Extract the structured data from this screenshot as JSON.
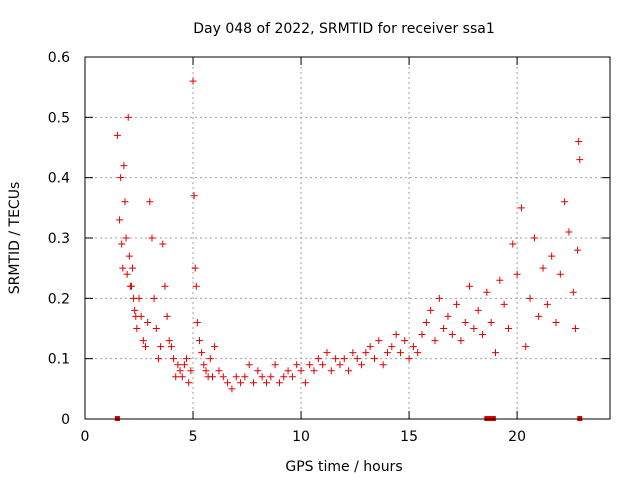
{
  "chart_data": {
    "type": "scatter",
    "title": "Day 048 of 2022, SRMTID for receiver ssa1",
    "xlabel": "GPS time / hours",
    "ylabel": "SRMTID / TECUs",
    "xlim": [
      0,
      24.3
    ],
    "ylim": [
      0,
      0.6
    ],
    "xticks": [
      0,
      5,
      10,
      15,
      20
    ],
    "xtick_labels": [
      "0",
      "5",
      "10",
      "15",
      "20"
    ],
    "yticks": [
      0,
      0.1,
      0.2,
      0.3,
      0.4,
      0.5,
      0.6
    ],
    "ytick_labels": [
      "0",
      "0.1",
      "0.2",
      "0.3",
      "0.4",
      "0.5",
      "0.6"
    ],
    "grid": true,
    "marker": "plus",
    "color": "#e00000",
    "series": [
      {
        "name": "SRMTID",
        "x": [
          1.5,
          1.6,
          1.65,
          1.7,
          1.75,
          1.8,
          1.85,
          1.9,
          1.95,
          2.0,
          2.05,
          2.1,
          2.15,
          2.2,
          2.25,
          2.3,
          2.35,
          2.4,
          2.5,
          2.6,
          2.7,
          2.8,
          2.9,
          3.0,
          3.1,
          3.2,
          3.3,
          3.4,
          3.5,
          3.6,
          3.7,
          3.8,
          3.9,
          4.0,
          4.1,
          4.2,
          4.3,
          4.4,
          4.5,
          4.6,
          4.7,
          4.8,
          4.9,
          5.0,
          5.05,
          5.1,
          5.15,
          5.2,
          5.3,
          5.4,
          5.5,
          5.6,
          5.7,
          5.8,
          5.9,
          6.0,
          6.2,
          6.4,
          6.6,
          6.8,
          7.0,
          7.2,
          7.4,
          7.6,
          7.8,
          8.0,
          8.2,
          8.4,
          8.6,
          8.8,
          9.0,
          9.2,
          9.4,
          9.6,
          9.8,
          10.0,
          10.2,
          10.4,
          10.6,
          10.8,
          11.0,
          11.2,
          11.4,
          11.6,
          11.8,
          12.0,
          12.2,
          12.4,
          12.6,
          12.8,
          13.0,
          13.2,
          13.4,
          13.6,
          13.8,
          14.0,
          14.2,
          14.4,
          14.6,
          14.8,
          15.0,
          15.2,
          15.4,
          15.6,
          15.8,
          16.0,
          16.2,
          16.4,
          16.6,
          16.8,
          17.0,
          17.2,
          17.4,
          17.6,
          17.8,
          18.0,
          18.2,
          18.4,
          18.6,
          18.8,
          19.0,
          19.2,
          19.4,
          19.6,
          19.8,
          20.0,
          20.2,
          20.4,
          20.6,
          20.8,
          21.0,
          21.2,
          21.4,
          21.6,
          21.8,
          22.0,
          22.2,
          22.4,
          22.6,
          22.7,
          22.8,
          22.85,
          22.9
        ],
        "y": [
          0.47,
          0.33,
          0.4,
          0.29,
          0.25,
          0.42,
          0.36,
          0.3,
          0.24,
          0.5,
          0.27,
          0.22,
          0.22,
          0.25,
          0.2,
          0.18,
          0.17,
          0.15,
          0.2,
          0.17,
          0.13,
          0.12,
          0.16,
          0.36,
          0.3,
          0.2,
          0.15,
          0.1,
          0.12,
          0.29,
          0.22,
          0.17,
          0.13,
          0.12,
          0.1,
          0.07,
          0.09,
          0.08,
          0.07,
          0.09,
          0.1,
          0.06,
          0.08,
          0.56,
          0.37,
          0.25,
          0.22,
          0.16,
          0.13,
          0.11,
          0.09,
          0.08,
          0.07,
          0.1,
          0.07,
          0.12,
          0.08,
          0.07,
          0.06,
          0.05,
          0.07,
          0.06,
          0.07,
          0.09,
          0.06,
          0.08,
          0.07,
          0.06,
          0.07,
          0.09,
          0.06,
          0.07,
          0.08,
          0.07,
          0.09,
          0.08,
          0.06,
          0.09,
          0.08,
          0.1,
          0.09,
          0.11,
          0.08,
          0.1,
          0.09,
          0.1,
          0.08,
          0.11,
          0.1,
          0.09,
          0.11,
          0.12,
          0.1,
          0.13,
          0.09,
          0.11,
          0.12,
          0.14,
          0.11,
          0.13,
          0.1,
          0.12,
          0.11,
          0.14,
          0.16,
          0.18,
          0.13,
          0.2,
          0.15,
          0.17,
          0.14,
          0.19,
          0.13,
          0.16,
          0.22,
          0.15,
          0.18,
          0.14,
          0.21,
          0.16,
          0.11,
          0.23,
          0.19,
          0.15,
          0.29,
          0.24,
          0.35,
          0.12,
          0.2,
          0.3,
          0.17,
          0.25,
          0.19,
          0.27,
          0.16,
          0.24,
          0.36,
          0.31,
          0.21,
          0.15,
          0.28,
          0.46,
          0.43
        ]
      }
    ],
    "rug_x": [
      1.5,
      18.6,
      18.7,
      18.8,
      18.9,
      22.9
    ]
  }
}
